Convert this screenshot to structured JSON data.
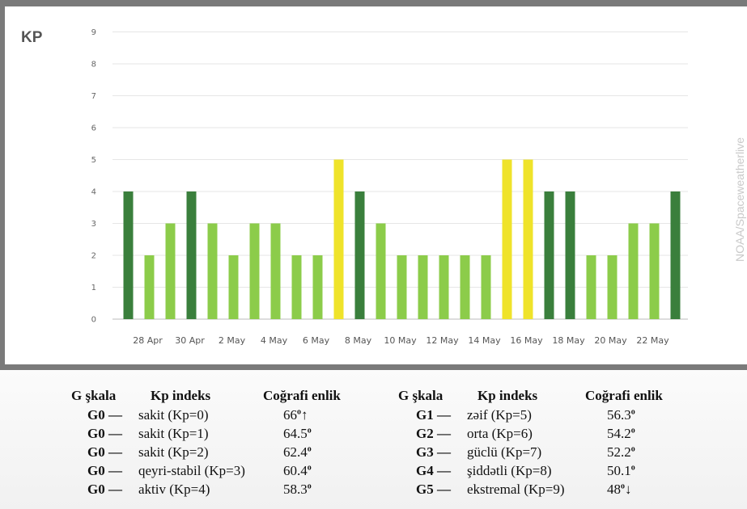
{
  "chart_title": "KP",
  "credit": "NOAA/Spaceweatherlive",
  "chart_data": {
    "type": "bar",
    "ylim": [
      0,
      9
    ],
    "yticks": [
      "0",
      "1",
      "2",
      "3",
      "4",
      "5",
      "6",
      "7",
      "8",
      "9"
    ],
    "xlabels": [
      "28 Apr",
      "30 Apr",
      "2 May",
      "4 May",
      "6 May",
      "8 May",
      "10 May",
      "12 May",
      "14 May",
      "16 May",
      "18 May",
      "20 May",
      "22 May"
    ],
    "values": [
      4,
      2,
      3,
      4,
      3,
      2,
      3,
      3,
      2,
      2,
      5,
      4,
      3,
      2,
      2,
      2,
      2,
      2,
      5,
      5,
      4,
      4,
      2,
      2,
      3,
      3,
      4
    ],
    "colors": {
      "kp_low": "#8ccc4a",
      "kp_4": "#3a7f3c",
      "kp_5": "#efe32a",
      "grid": "#e6e6e6",
      "axis": "#bbbbbb"
    }
  },
  "legend": {
    "headers": {
      "g_scale": "G şkala",
      "kp_index": "Kp indeks",
      "latitude": "Coğrafi enlik"
    },
    "left": [
      {
        "g": "G0 —",
        "desc": "sakit (Kp=0)",
        "lat": "66",
        "arrow": "↑"
      },
      {
        "g": "G0 —",
        "desc": "sakit (Kp=1)",
        "lat": "64.5",
        "arrow": ""
      },
      {
        "g": "G0 —",
        "desc": "sakit (Kp=2)",
        "lat": "62.4",
        "arrow": ""
      },
      {
        "g": "G0 —",
        "desc": "qeyri-stabil (Kp=3)",
        "lat": "60.4",
        "arrow": ""
      },
      {
        "g": "G0 —",
        "desc": "aktiv (Kp=4)",
        "lat": "58.3",
        "arrow": ""
      }
    ],
    "right": [
      {
        "g": "G1 —",
        "desc": "zəif (Kp=5)",
        "lat": "56.3",
        "arrow": ""
      },
      {
        "g": "G2 —",
        "desc": "orta (Kp=6)",
        "lat": "54.2",
        "arrow": ""
      },
      {
        "g": "G3 —",
        "desc": "güclü (Kp=7)",
        "lat": "52.2",
        "arrow": ""
      },
      {
        "g": "G4 —",
        "desc": "şiddətli (Kp=8)",
        "lat": "50.1",
        "arrow": ""
      },
      {
        "g": "G5 —",
        "desc": "ekstremal (Kp=9)",
        "lat": "48",
        "arrow": "↓"
      }
    ],
    "degree_symbol": "o"
  }
}
